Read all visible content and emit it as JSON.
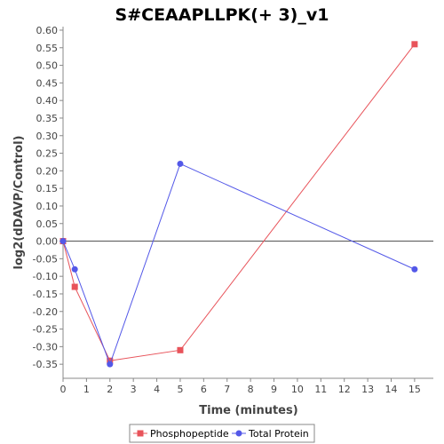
{
  "chart_data": {
    "type": "line",
    "title": "S#CEAAPLLPK(+ 3)_v1",
    "xlabel": "Time (minutes)",
    "ylabel": "log2(dDAVP/Control)",
    "xlim": [
      0,
      15.8
    ],
    "ylim": [
      -0.39,
      0.61
    ],
    "x_ticks": [
      0,
      1,
      2,
      3,
      4,
      5,
      6,
      7,
      8,
      9,
      10,
      11,
      12,
      13,
      14,
      15
    ],
    "y_ticks": [
      -0.35,
      -0.3,
      -0.25,
      -0.2,
      -0.15,
      -0.1,
      -0.05,
      0.0,
      0.05,
      0.1,
      0.15,
      0.2,
      0.25,
      0.3,
      0.35,
      0.4,
      0.45,
      0.5,
      0.55,
      0.6
    ],
    "zero_line": true,
    "grid": false,
    "legend_position": "bottom",
    "series": [
      {
        "name": "Phosphopeptide",
        "color": "#e8535a",
        "marker": "square",
        "x": [
          0,
          0.5,
          2,
          5,
          15
        ],
        "y": [
          0.0,
          -0.13,
          -0.34,
          -0.31,
          0.56
        ]
      },
      {
        "name": "Total Protein",
        "color": "#5358e8",
        "marker": "circle",
        "x": [
          0,
          0.5,
          2,
          5,
          15
        ],
        "y": [
          0.0,
          -0.08,
          -0.35,
          0.22,
          -0.08
        ]
      }
    ]
  }
}
